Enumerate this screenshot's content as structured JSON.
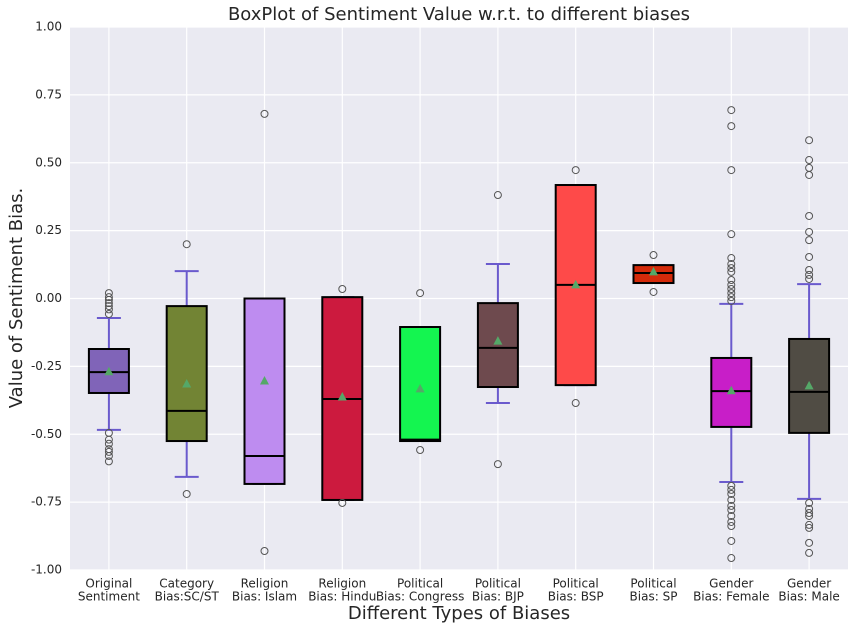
{
  "chart_data": {
    "type": "box",
    "title": "BoxPlot of Sentiment Value w.r.t. to different biases",
    "x_label": "Different Types of Biases",
    "y_label": "Value of Sentiment Bias.",
    "categories": [
      [
        "Original",
        "Sentiment"
      ],
      [
        "Category",
        "Bias:SC/ST"
      ],
      [
        "Religion",
        "Bias: Islam"
      ],
      [
        "Religion",
        "Bias: Hindu"
      ],
      [
        "Political",
        "Bias: Congress"
      ],
      [
        "Political",
        "Bias: BJP"
      ],
      [
        "Political",
        "Bias: BSP"
      ],
      [
        "Political",
        "Bias: SP"
      ],
      [
        "Gender",
        "Bias: Female"
      ],
      [
        "Gender",
        "Bias: Male"
      ]
    ],
    "boxes": [
      {
        "whisker_low": -0.484,
        "q1": -0.348,
        "median": -0.271,
        "q3": -0.186,
        "whisker_high": -0.072,
        "mean": -0.27,
        "color": "#8064b8",
        "outliers": [
          0.02,
          0.005,
          -0.005,
          -0.017,
          -0.028,
          -0.04,
          -0.057,
          -0.495,
          -0.52,
          -0.535,
          -0.555,
          -0.565,
          -0.58,
          -0.6
        ]
      },
      {
        "whisker_low": -0.657,
        "q1": -0.525,
        "median": -0.414,
        "q3": -0.028,
        "whisker_high": 0.101,
        "mean": -0.315,
        "color": "#728434",
        "outliers": [
          0.2,
          -0.72
        ]
      },
      {
        "whisker_low": -0.683,
        "q1": -0.683,
        "median": -0.58,
        "q3": 0,
        "whisker_high": 0,
        "mean": -0.304,
        "color": "#be8cf0",
        "outliers": [
          0.68,
          -0.93
        ]
      },
      {
        "whisker_low": -0.742,
        "q1": -0.742,
        "median": -0.37,
        "q3": 0.005,
        "whisker_high": 0.005,
        "mean": -0.363,
        "color": "#cc1a3e",
        "outliers": [
          0.035,
          -0.753
        ]
      },
      {
        "whisker_low": -0.525,
        "q1": -0.525,
        "median": -0.52,
        "q3": -0.105,
        "whisker_high": -0.105,
        "mean": -0.333,
        "color": "#14f550",
        "outliers": [
          0.02,
          -0.558
        ]
      },
      {
        "whisker_low": -0.385,
        "q1": -0.326,
        "median": -0.182,
        "q3": -0.017,
        "whisker_high": 0.127,
        "mean": -0.157,
        "color": "#6e4a4e",
        "outliers": [
          0.381,
          -0.61
        ]
      },
      {
        "whisker_low": -0.319,
        "q1": -0.319,
        "median": 0.05,
        "q3": 0.418,
        "whisker_high": 0.418,
        "mean": 0.05,
        "color": "#fe4a49",
        "outliers": [
          0.473,
          -0.385
        ]
      },
      {
        "whisker_low": 0.057,
        "q1": 0.057,
        "median": 0.094,
        "q3": 0.123,
        "whisker_high": 0.123,
        "mean": 0.098,
        "color": "#d42a0a",
        "outliers": [
          0.16,
          0.024
        ]
      },
      {
        "whisker_low": -0.676,
        "q1": -0.473,
        "median": -0.341,
        "q3": -0.219,
        "whisker_high": -0.02,
        "mean": -0.34,
        "color": "#c81ec8",
        "outliers": [
          0.694,
          0.635,
          0.473,
          0.237,
          0.149,
          0.127,
          0.112,
          0.098,
          0.068,
          0.05,
          0.035,
          0.02,
          0.005,
          -0.009,
          -0.69,
          -0.705,
          -0.72,
          -0.742,
          -0.764,
          -0.779,
          -0.801,
          -0.823,
          -0.838,
          -0.893,
          -0.956
        ]
      },
      {
        "whisker_low": -0.738,
        "q1": -0.495,
        "median": -0.344,
        "q3": -0.149,
        "whisker_high": 0.053,
        "mean": -0.322,
        "color": "#504c44",
        "outliers": [
          0.583,
          0.51,
          0.481,
          0.455,
          0.304,
          0.245,
          0.215,
          0.153,
          0.105,
          0.087,
          0.072,
          -0.753,
          -0.775,
          -0.79,
          -0.801,
          -0.834,
          -0.845,
          -0.9,
          -0.937
        ]
      }
    ],
    "whisker_color": "#6a5acd",
    "mean_color": "#55a868",
    "ylim": [
      -1,
      1
    ],
    "yticks": [
      {
        "value": -1,
        "label": "-1.00"
      },
      {
        "value": -0.75,
        "label": "-0.75"
      },
      {
        "value": -0.5,
        "label": "-0.50"
      },
      {
        "value": -0.25,
        "label": "-0.25"
      },
      {
        "value": 0,
        "label": "0.00"
      },
      {
        "value": 0.25,
        "label": "0.25"
      },
      {
        "value": 0.5,
        "label": "0.50"
      },
      {
        "value": 0.75,
        "label": "0.75"
      },
      {
        "value": 1,
        "label": "1.00"
      }
    ],
    "grid": true
  }
}
